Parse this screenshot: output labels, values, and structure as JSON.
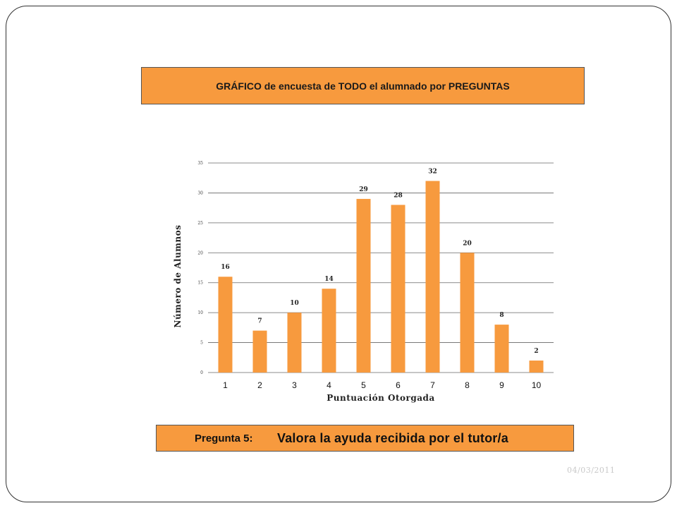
{
  "slide": {
    "title": "GRÁFICO de encuesta de TODO  el alumnado por PREGUNTAS",
    "question_label": "Pregunta 5:",
    "question_text": "Valora la ayuda recibida por el tutor/a",
    "date": "04/03/2011"
  },
  "colors": {
    "bar": "#f79a3e",
    "box": "#f79a3e"
  },
  "chart_data": {
    "type": "bar",
    "categories": [
      "1",
      "2",
      "3",
      "4",
      "5",
      "6",
      "7",
      "8",
      "9",
      "10"
    ],
    "values": [
      16,
      7,
      10,
      14,
      29,
      28,
      32,
      20,
      8,
      2
    ],
    "xlabel": "Puntuación Otorgada",
    "ylabel": "Número de Alumnos",
    "ylim": [
      0,
      35
    ],
    "yticks": [
      0,
      5,
      10,
      15,
      20,
      25,
      30,
      35
    ],
    "grid": true,
    "legend": "none",
    "data_labels": true
  }
}
